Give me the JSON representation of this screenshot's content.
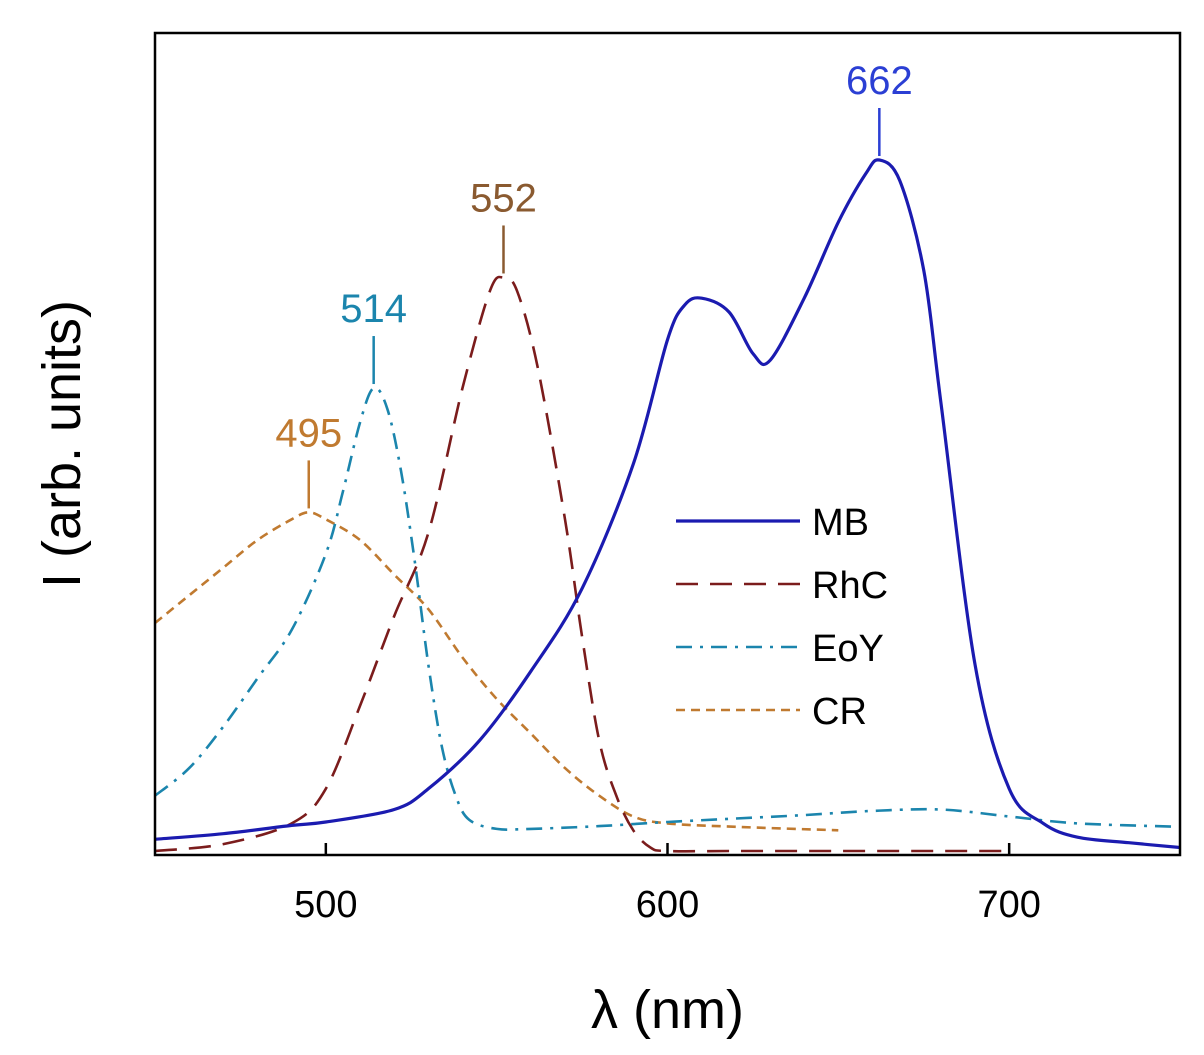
{
  "chart_data": {
    "type": "line",
    "title": "",
    "xlabel": "λ (nm)",
    "ylabel": "I (arb. units)",
    "xlim": [
      450,
      750
    ],
    "ylim": [
      0,
      1
    ],
    "xticks": [
      500,
      600,
      700
    ],
    "yticks": [],
    "grid": false,
    "legend": {
      "position": "right-center"
    },
    "series": [
      {
        "name": "MB",
        "color": "#1b1bb0",
        "dash": "solid",
        "x": [
          450,
          470,
          490,
          500,
          520,
          530,
          545,
          560,
          575,
          590,
          600,
          605,
          610,
          618,
          625,
          630,
          640,
          650,
          658,
          662,
          668,
          675,
          680,
          690,
          700,
          710,
          720,
          735,
          750
        ],
        "y": [
          0.017,
          0.025,
          0.037,
          0.042,
          0.06,
          0.09,
          0.16,
          0.26,
          0.38,
          0.56,
          0.74,
          0.79,
          0.8,
          0.78,
          0.72,
          0.71,
          0.8,
          0.91,
          0.98,
          1.0,
          0.97,
          0.84,
          0.65,
          0.27,
          0.09,
          0.04,
          0.02,
          0.012,
          0.005
        ]
      },
      {
        "name": "RhC",
        "color": "#7b1c1c",
        "dash": "dashed",
        "x": [
          450,
          470,
          490,
          500,
          510,
          520,
          530,
          540,
          548,
          552,
          556,
          562,
          570,
          575,
          580,
          585,
          590,
          595,
          600,
          620,
          650,
          680,
          700
        ],
        "y": [
          0.0,
          0.01,
          0.04,
          0.09,
          0.21,
          0.34,
          0.46,
          0.67,
          0.81,
          0.83,
          0.81,
          0.7,
          0.48,
          0.31,
          0.16,
          0.08,
          0.03,
          0.005,
          0.0,
          0.0,
          0.0,
          0.0,
          0.0
        ]
      },
      {
        "name": "EoY",
        "color": "#1b85ad",
        "dash": "dashdot",
        "x": [
          450,
          460,
          470,
          480,
          490,
          500,
          505,
          510,
          514,
          518,
          522,
          526,
          530,
          534,
          538,
          542,
          550,
          560,
          580,
          600,
          620,
          640,
          660,
          680,
          700,
          720,
          750
        ],
        "y": [
          0.08,
          0.12,
          0.18,
          0.25,
          0.32,
          0.43,
          0.52,
          0.62,
          0.67,
          0.64,
          0.55,
          0.42,
          0.27,
          0.15,
          0.08,
          0.045,
          0.032,
          0.032,
          0.036,
          0.042,
          0.047,
          0.052,
          0.058,
          0.06,
          0.05,
          0.04,
          0.035
        ]
      },
      {
        "name": "CR",
        "color": "#c07a30",
        "dash": "dotted",
        "x": [
          450,
          460,
          470,
          480,
          490,
          495,
          500,
          510,
          520,
          530,
          540,
          550,
          560,
          570,
          580,
          590,
          600,
          620,
          650
        ],
        "y": [
          0.33,
          0.37,
          0.41,
          0.45,
          0.48,
          0.49,
          0.48,
          0.45,
          0.4,
          0.35,
          0.28,
          0.22,
          0.17,
          0.12,
          0.08,
          0.05,
          0.04,
          0.035,
          0.03
        ]
      }
    ],
    "annotations": [
      {
        "text": "662",
        "x": 662,
        "series": "MB",
        "color": "#2b3fd4"
      },
      {
        "text": "552",
        "x": 552,
        "series": "RhC",
        "color": "#8a5a30"
      },
      {
        "text": "514",
        "x": 514,
        "series": "EoY",
        "color": "#1b85ad"
      },
      {
        "text": "495",
        "x": 495,
        "series": "CR",
        "color": "#c07a30"
      }
    ]
  }
}
